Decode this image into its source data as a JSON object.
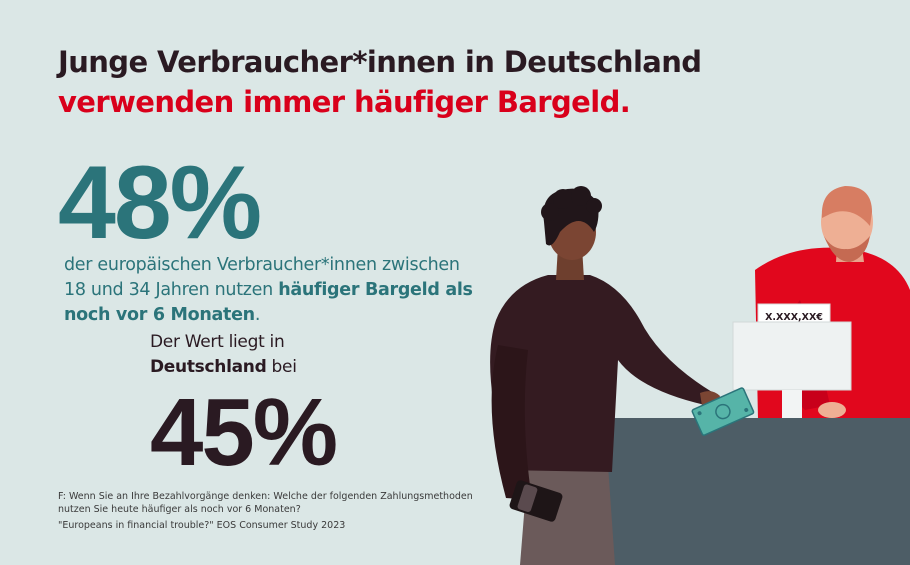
{
  "headline": {
    "line1": "Junge Verbraucher*innen in Deutschland",
    "line2": "verwenden immer häufiger Bargeld."
  },
  "stat_eu": {
    "value": "48%",
    "text_1": "der europäischen Verbraucher*innen zwischen 18 und 34 Jahren nutzen ",
    "text_bold": "häufiger Bargeld als noch vor 6 Monaten",
    "text_end": "."
  },
  "stat_de": {
    "prefix": "Der Wert liegt in",
    "country": "Deutschland",
    "suffix": " bei",
    "value": "45%"
  },
  "register_display": "X.XXX,XX€",
  "footnote": {
    "question": "F: Wenn Sie an Ihre Bezahlvorgänge denken: Welche der folgenden Zahlungsmethoden nutzen Sie heute häufiger als noch vor 6 Monaten?",
    "source": "\"Europeans in financial trouble?\" EOS Consumer Study 2023"
  },
  "colors": {
    "background": "#dbe7e6",
    "teal": "#2b747a",
    "red": "#d9001b",
    "dark": "#2a1a22"
  }
}
